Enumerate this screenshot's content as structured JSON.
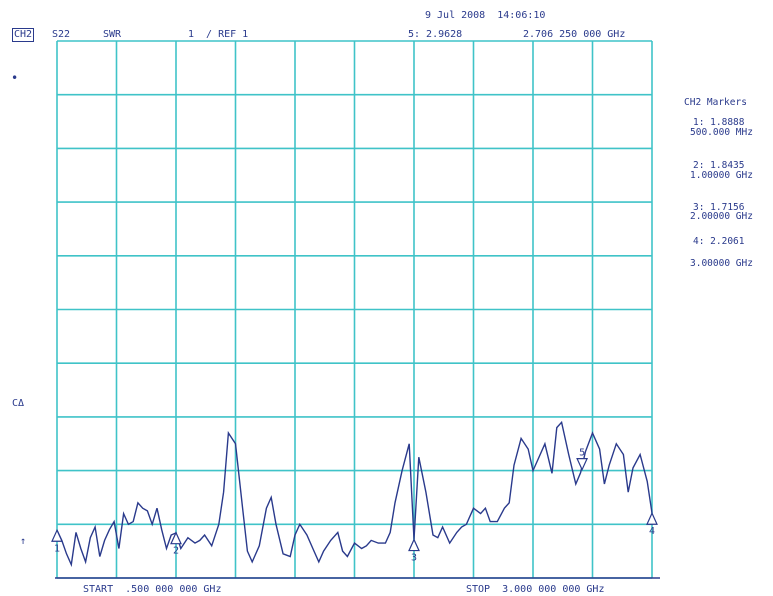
{
  "header": {
    "date_time": "9 Jul 2008  14:06:10",
    "channel": "CH2",
    "param": "S22",
    "format": "SWR",
    "scale": "1  / REF 1",
    "marker_readout": "5: 2.9628",
    "marker_freq": "2.706 250 000 GHz"
  },
  "left_labels": {
    "ref_marker": "•",
    "cal": "CΔ",
    "arrow": "↑"
  },
  "footer": {
    "start": "START  .500 000 000 GHz",
    "stop": "STOP  3.000 000 000 GHz"
  },
  "markers_panel": {
    "title": "CH2 Markers",
    "items": [
      {
        "value": "1: 1.8888",
        "freq": "500.000 MHz"
      },
      {
        "value": "2: 1.8435",
        "freq": "1.00000 GHz"
      },
      {
        "value": "3: 1.7156",
        "freq": "2.00000 GHz"
      },
      {
        "value": "4: 2.2061",
        "freq": "3.00000 GHz"
      }
    ]
  },
  "chart_data": {
    "type": "line",
    "title": "",
    "xlabel": "",
    "ylabel": "",
    "x_unit": "GHz",
    "xlim": [
      0.5,
      3.0
    ],
    "ylim": [
      1,
      11
    ],
    "grid": true,
    "grid_divisions": {
      "x": 10,
      "y": 10
    },
    "trace_color": "#2a3a8c",
    "grid_color": "#3fc3c8",
    "series": [
      {
        "x": [
          0.5,
          0.52,
          0.54,
          0.56,
          0.58,
          0.6,
          0.62,
          0.64,
          0.66,
          0.68,
          0.7,
          0.72,
          0.74,
          0.76,
          0.78,
          0.8,
          0.82,
          0.84,
          0.86,
          0.88,
          0.9,
          0.92,
          0.94,
          0.96,
          0.98,
          1.0,
          1.02,
          1.05,
          1.08,
          1.1,
          1.12,
          1.15,
          1.18,
          1.2,
          1.22,
          1.25,
          1.28,
          1.3,
          1.32,
          1.35,
          1.38,
          1.4,
          1.42,
          1.45,
          1.48,
          1.5,
          1.52,
          1.55,
          1.58,
          1.6,
          1.62,
          1.65,
          1.68,
          1.7,
          1.72,
          1.75,
          1.78,
          1.8,
          1.82,
          1.85,
          1.88,
          1.9,
          1.92,
          1.95,
          1.98,
          2.0,
          2.02,
          2.05,
          2.08,
          2.1,
          2.12,
          2.15,
          2.18,
          2.2,
          2.22,
          2.25,
          2.28,
          2.3,
          2.32,
          2.35,
          2.38,
          2.4,
          2.42,
          2.45,
          2.48,
          2.5,
          2.52,
          2.55,
          2.58,
          2.6,
          2.62,
          2.65,
          2.68,
          2.7,
          2.72,
          2.75,
          2.78,
          2.8,
          2.82,
          2.85,
          2.88,
          2.9,
          2.92,
          2.95,
          2.98,
          3.0
        ],
        "y": [
          1.89,
          1.7,
          1.45,
          1.25,
          1.85,
          1.55,
          1.3,
          1.75,
          1.95,
          1.4,
          1.7,
          1.9,
          2.05,
          1.55,
          2.2,
          2.0,
          2.05,
          2.4,
          2.3,
          2.25,
          2.0,
          2.3,
          1.9,
          1.55,
          1.8,
          1.84,
          1.55,
          1.75,
          1.65,
          1.7,
          1.8,
          1.6,
          2.0,
          2.6,
          3.7,
          3.5,
          2.3,
          1.5,
          1.3,
          1.6,
          2.3,
          2.5,
          2.0,
          1.45,
          1.4,
          1.8,
          2.0,
          1.8,
          1.5,
          1.3,
          1.5,
          1.7,
          1.85,
          1.5,
          1.4,
          1.65,
          1.55,
          1.6,
          1.7,
          1.65,
          1.65,
          1.85,
          2.4,
          3.0,
          3.5,
          1.72,
          3.25,
          2.6,
          1.8,
          1.75,
          1.95,
          1.65,
          1.85,
          1.95,
          2.0,
          2.3,
          2.2,
          2.3,
          2.05,
          2.05,
          2.3,
          2.4,
          3.1,
          3.6,
          3.4,
          3.0,
          3.2,
          3.5,
          2.95,
          3.8,
          3.9,
          3.3,
          2.75,
          2.96,
          3.35,
          3.7,
          3.4,
          2.75,
          3.1,
          3.5,
          3.3,
          2.6,
          3.05,
          3.3,
          2.8,
          2.21
        ]
      }
    ],
    "markers": [
      {
        "id": "1",
        "x": 0.5,
        "y": 1.8888,
        "dir": "up"
      },
      {
        "id": "2",
        "x": 1.0,
        "y": 1.8435,
        "dir": "up"
      },
      {
        "id": "3",
        "x": 2.0,
        "y": 1.7156,
        "dir": "up"
      },
      {
        "id": "4",
        "x": 3.0,
        "y": 2.2061,
        "dir": "up"
      },
      {
        "id": "5",
        "x": 2.70625,
        "y": 2.9628,
        "dir": "down"
      }
    ]
  }
}
